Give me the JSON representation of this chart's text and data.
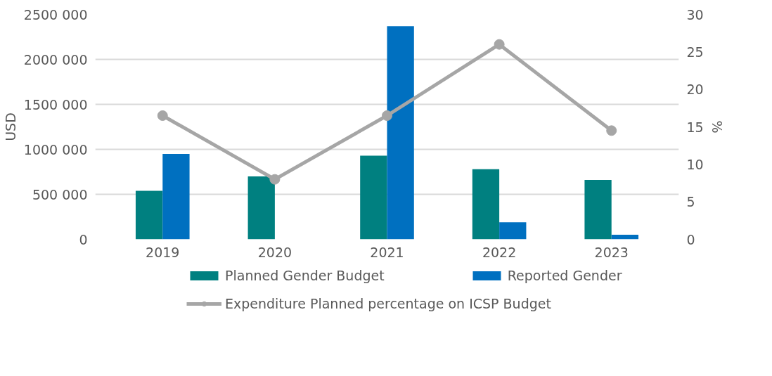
{
  "chart_data": {
    "type": "bar",
    "ylabel": "USD",
    "y2label": "%",
    "categories": [
      "2019",
      "2020",
      "2021",
      "2022",
      "2023"
    ],
    "series": [
      {
        "name": "Planned Gender Budget",
        "color": "#008080",
        "values": [
          540000,
          700000,
          930000,
          780000,
          660000
        ]
      },
      {
        "name": "Reported Gender",
        "color": "#0070c0",
        "values": [
          950000,
          null,
          2370000,
          190000,
          50000
        ]
      },
      {
        "name": "Expenditure Planned percentage on ICSP Budget",
        "type": "line",
        "axis": "y2",
        "color": "#a6a6a6",
        "marker": "circle",
        "values": [
          16.5,
          8,
          16.5,
          26,
          14.5
        ]
      }
    ],
    "ylim": [
      0,
      2500000
    ],
    "yticks": [
      {
        "value": 0,
        "label": "0"
      },
      {
        "value": 500000,
        "label": "500 000"
      },
      {
        "value": 1000000,
        "label": "1000 000"
      },
      {
        "value": 1500000,
        "label": "1500 000"
      },
      {
        "value": 2000000,
        "label": "2000 000"
      },
      {
        "value": 2500000,
        "label": "2500 000"
      }
    ],
    "y2lim": [
      0,
      30
    ],
    "y2ticks": [
      0,
      5,
      10,
      15,
      20,
      25,
      30
    ],
    "grid": "y",
    "legend": "bottom"
  }
}
